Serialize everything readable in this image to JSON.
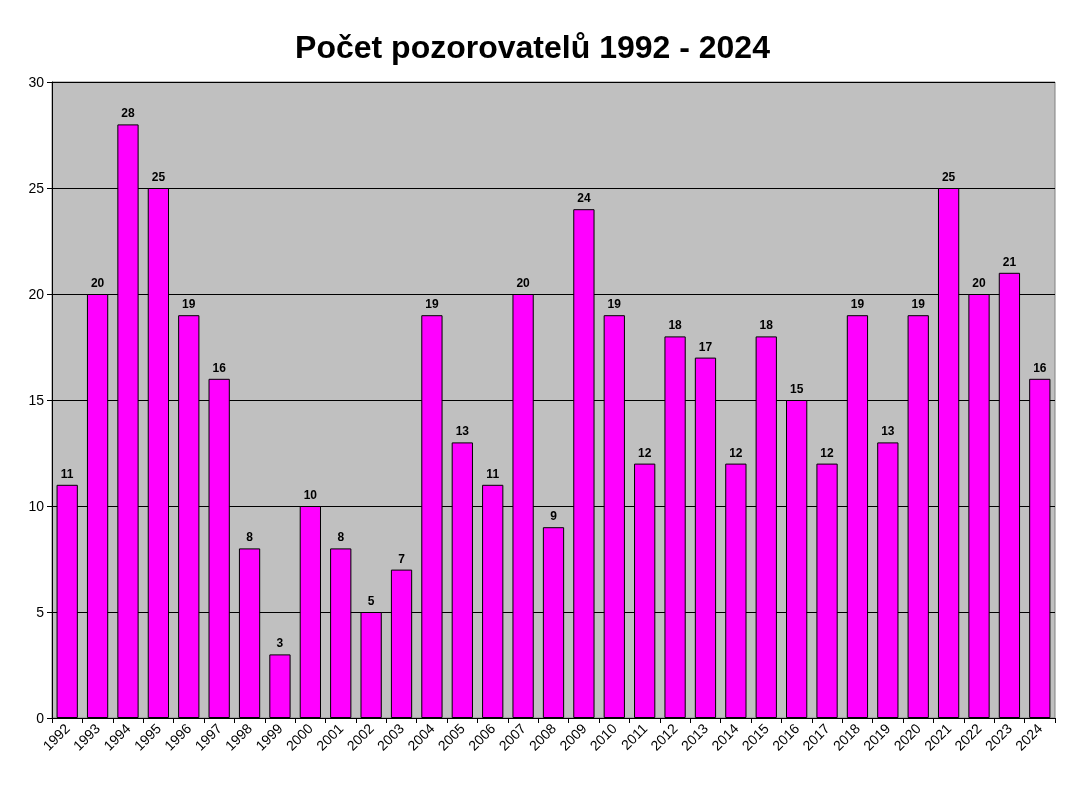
{
  "chart_data": {
    "type": "bar",
    "title": "Počet pozorovatelů 1992 - 2024",
    "categories": [
      "1992",
      "1993",
      "1994",
      "1995",
      "1996",
      "1997",
      "1998",
      "1999",
      "2000",
      "2001",
      "2002",
      "2003",
      "2004",
      "2005",
      "2006",
      "2007",
      "2008",
      "2009",
      "2010",
      "2011",
      "2012",
      "2013",
      "2014",
      "2015",
      "2016",
      "2017",
      "2018",
      "2019",
      "2020",
      "2021",
      "2022",
      "2023",
      "2024"
    ],
    "values": [
      11,
      20,
      28,
      25,
      19,
      16,
      8,
      3,
      10,
      8,
      5,
      7,
      19,
      13,
      11,
      20,
      9,
      24,
      19,
      12,
      18,
      17,
      12,
      18,
      15,
      12,
      19,
      13,
      19,
      25,
      20,
      21,
      16
    ],
    "color": "#ff00ff",
    "ylim": [
      0,
      30
    ],
    "yticks": [
      0,
      5,
      10,
      15,
      20,
      25,
      30
    ],
    "grid": "y",
    "data_labels": true
  }
}
